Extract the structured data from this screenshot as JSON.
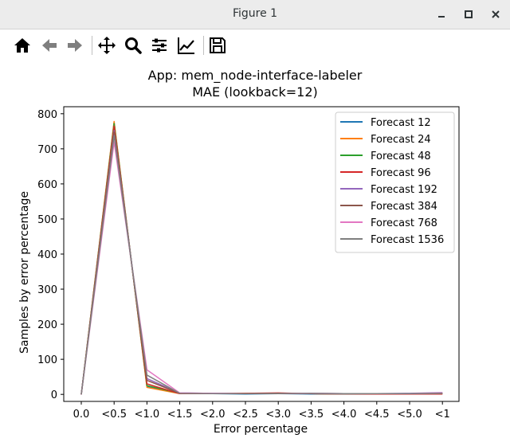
{
  "window": {
    "title": "Figure 1"
  },
  "toolbar": {
    "icons": [
      "home-icon",
      "back-arrow-icon",
      "forward-arrow-icon",
      "pan-icon",
      "zoom-icon",
      "configure-subplots-icon",
      "edit-axis-icon",
      "save-icon"
    ]
  },
  "chart_data": {
    "type": "line",
    "title": "App: mem_node-interface-labeler",
    "subtitle": "MAE (lookback=12)",
    "xlabel": "Error percentage",
    "ylabel": "Samples by error percentage",
    "categories": [
      "0.0",
      "<0.5",
      "<1.0",
      "<1.5",
      "<2.0",
      "<2.5",
      "<3.0",
      "<3.5",
      "<4.0",
      "<4.5",
      "<5.0",
      "<1"
    ],
    "yticks": [
      "0",
      "100",
      "200",
      "300",
      "400",
      "500",
      "600",
      "700",
      "800"
    ],
    "ylim": [
      -20,
      820
    ],
    "legend_position": "top-right",
    "grid": false,
    "series": [
      {
        "name": "Forecast 12",
        "color": "#1f77b4",
        "values": [
          0,
          775,
          22,
          3,
          2,
          1,
          2,
          1,
          1,
          1,
          1,
          2
        ]
      },
      {
        "name": "Forecast 24",
        "color": "#ff7f0e",
        "values": [
          0,
          778,
          20,
          2,
          2,
          3,
          3,
          2,
          1,
          1,
          2,
          3
        ]
      },
      {
        "name": "Forecast 48",
        "color": "#2ca02c",
        "values": [
          0,
          772,
          25,
          3,
          2,
          2,
          2,
          2,
          1,
          2,
          1,
          2
        ]
      },
      {
        "name": "Forecast 96",
        "color": "#d62728",
        "values": [
          0,
          765,
          30,
          2,
          2,
          3,
          4,
          2,
          1,
          1,
          1,
          1
        ]
      },
      {
        "name": "Forecast 192",
        "color": "#9467bd",
        "values": [
          0,
          752,
          45,
          4,
          3,
          2,
          2,
          3,
          2,
          2,
          3,
          5
        ]
      },
      {
        "name": "Forecast 384",
        "color": "#8c564b",
        "values": [
          0,
          748,
          40,
          3,
          2,
          2,
          3,
          2,
          1,
          2,
          2,
          3
        ]
      },
      {
        "name": "Forecast 768",
        "color": "#e377c2",
        "values": [
          0,
          720,
          70,
          4,
          3,
          2,
          2,
          3,
          2,
          2,
          2,
          4
        ]
      },
      {
        "name": "Forecast 1536",
        "color": "#7f7f7f",
        "values": [
          0,
          738,
          55,
          3,
          2,
          2,
          2,
          3,
          2,
          2,
          2,
          3
        ]
      }
    ]
  }
}
